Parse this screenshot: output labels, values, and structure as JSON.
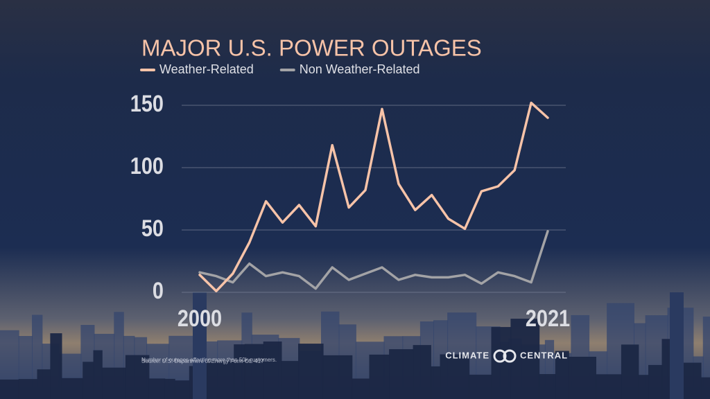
{
  "chart_data": {
    "type": "line",
    "title": "MAJOR U.S. POWER OUTAGES",
    "x": [
      2000,
      2001,
      2002,
      2003,
      2004,
      2005,
      2006,
      2007,
      2008,
      2009,
      2010,
      2011,
      2012,
      2013,
      2014,
      2015,
      2016,
      2017,
      2018,
      2019,
      2020,
      2021
    ],
    "series": [
      {
        "name": "Weather-Related",
        "color": "#f7c3a8",
        "values": [
          14,
          1,
          15,
          40,
          73,
          56,
          70,
          53,
          118,
          68,
          82,
          147,
          87,
          66,
          78,
          59,
          51,
          81,
          85,
          98,
          152,
          140
        ]
      },
      {
        "name": "Non Weather-Related",
        "color": "#a3a3a6",
        "values": [
          16,
          13,
          8,
          23,
          13,
          16,
          13,
          3,
          20,
          10,
          15,
          20,
          10,
          14,
          12,
          12,
          14,
          7,
          16,
          13,
          8,
          49
        ]
      }
    ],
    "xlim": [
      2000,
      2021
    ],
    "xticks": [
      2000,
      2021
    ],
    "ylim": [
      0,
      150
    ],
    "yticks": [
      0,
      50,
      100,
      150
    ],
    "grid": true,
    "notes": [
      "Number of outages affecting more than 50k customers.",
      "Source: U.S. Department of Energy Form OE-417"
    ],
    "logo": [
      "CLIMATE",
      "CENTRAL"
    ]
  }
}
